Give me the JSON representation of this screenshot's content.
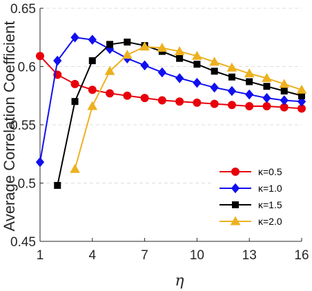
{
  "chart_data": {
    "type": "line",
    "title": "",
    "xlabel": "η",
    "ylabel": "Average Correlation Coefficient",
    "xlim": [
      1,
      16
    ],
    "ylim": [
      0.45,
      0.65
    ],
    "xticks": [
      1,
      4,
      7,
      10,
      13,
      16
    ],
    "yticks": [
      0.45,
      0.5,
      0.55,
      0.6,
      0.65
    ],
    "xtick_labels": [
      "1",
      "4",
      "7",
      "10",
      "13",
      "16"
    ],
    "ytick_labels": [
      "0.45",
      "0.5",
      "0.55",
      "0.6",
      "0.65"
    ],
    "grid": true,
    "legend_position": "bottom-right",
    "series": [
      {
        "name": "κ=0.5",
        "color": "#e8000b",
        "marker": "circle",
        "x": [
          1,
          2,
          3,
          4,
          5,
          6,
          7,
          8,
          9,
          10,
          11,
          12,
          13,
          14,
          15,
          16
        ],
        "y": [
          0.609,
          0.593,
          0.585,
          0.58,
          0.577,
          0.575,
          0.573,
          0.571,
          0.57,
          0.569,
          0.568,
          0.567,
          0.566,
          0.566,
          0.565,
          0.564
        ]
      },
      {
        "name": "κ=1.0",
        "color": "#1010ee",
        "marker": "diamond",
        "x": [
          1,
          2,
          3,
          4,
          5,
          6,
          7,
          8,
          9,
          10,
          11,
          12,
          13,
          14,
          15,
          16
        ],
        "y": [
          0.518,
          0.605,
          0.625,
          0.623,
          0.615,
          0.607,
          0.601,
          0.595,
          0.59,
          0.586,
          0.582,
          0.579,
          0.576,
          0.573,
          0.571,
          0.57
        ]
      },
      {
        "name": "κ=1.5",
        "color": "#000000",
        "marker": "square",
        "x": [
          2,
          3,
          4,
          5,
          6,
          7,
          8,
          9,
          10,
          11,
          12,
          13,
          14,
          15,
          16
        ],
        "y": [
          0.498,
          0.57,
          0.605,
          0.619,
          0.621,
          0.618,
          0.613,
          0.607,
          0.602,
          0.596,
          0.591,
          0.587,
          0.583,
          0.579,
          0.575
        ]
      },
      {
        "name": "κ=2.0",
        "color": "#edb120",
        "marker": "triangle",
        "x": [
          3,
          4,
          5,
          6,
          7,
          8,
          9,
          10,
          11,
          12,
          13,
          14,
          15,
          16
        ],
        "y": [
          0.512,
          0.566,
          0.596,
          0.61,
          0.617,
          0.616,
          0.613,
          0.609,
          0.604,
          0.599,
          0.594,
          0.59,
          0.585,
          0.58
        ]
      }
    ]
  }
}
